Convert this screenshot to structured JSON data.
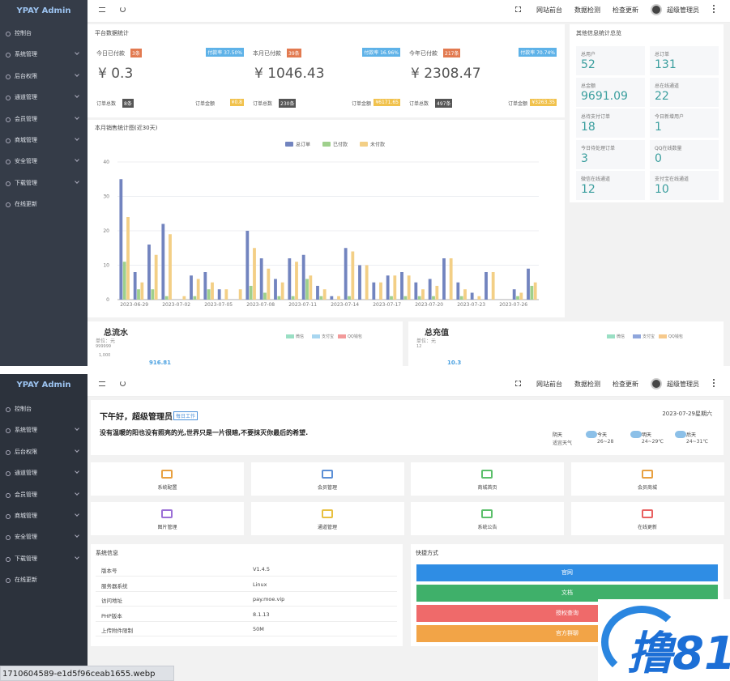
{
  "top": {
    "sidebar": {
      "brand": "YPAY Admin",
      "menu": [
        "控制台",
        "系统管理",
        "后台权限",
        "通道管理",
        "会员管理",
        "商城管理",
        "安全管理",
        "下载管理",
        "在线更新"
      ]
    },
    "topbar": {
      "links": [
        "网站前台",
        "数据检测",
        "检查更新"
      ],
      "user": "超级管理员"
    },
    "stats": {
      "title": "平台数据统计",
      "cards": [
        {
          "label": "今日已付款",
          "count": "3条",
          "rate": "付款率 37.50%",
          "amount": "¥ 0.3",
          "orders_label": "订单总数",
          "orders": "8条",
          "money_label": "订单金额",
          "money": "¥0.8"
        },
        {
          "label": "本月已付款",
          "count": "39条",
          "rate": "付款率 16.96%",
          "amount": "¥ 1046.43",
          "orders_label": "订单总数",
          "orders": "230条",
          "money_label": "订单金额",
          "money": "¥6171.65"
        },
        {
          "label": "今年已付款",
          "count": "217条",
          "rate": "付款率 70.74%",
          "amount": "¥ 2308.47",
          "orders_label": "订单总数",
          "orders": "497条",
          "money_label": "订单金额",
          "money": "¥3263.35"
        }
      ]
    },
    "overview": {
      "title": "其他信息统计总览",
      "items": [
        {
          "label": "总用户",
          "value": 52
        },
        {
          "label": "总订单",
          "value": 131
        },
        {
          "label": "总金额",
          "value": 9691.09
        },
        {
          "label": "总在线通道",
          "value": 22
        },
        {
          "label": "总待支付订单",
          "value": 18
        },
        {
          "label": "今日新增用户",
          "value": 1
        },
        {
          "label": "今日待处理订单",
          "value": 3
        },
        {
          "label": "QQ在线数量",
          "value": 0
        },
        {
          "label": "微信在线通道",
          "value": 12
        },
        {
          "label": "支付宝在线通道",
          "value": 10
        }
      ]
    },
    "panels": [
      {
        "title": "总流水",
        "unit": "单位：元",
        "legend": [
          "微信",
          "支付宝",
          "QQ钱包"
        ],
        "axis": [
          "999999",
          "1,000"
        ],
        "value": "916.81"
      },
      {
        "title": "总充值",
        "unit": "单位：元",
        "legend": [
          "微信",
          "支付宝",
          "QQ钱包"
        ],
        "axis": [
          "12"
        ],
        "value": "10.3"
      }
    ]
  },
  "chart_data": {
    "type": "bar",
    "title": "本月销售统计图(近30天)",
    "categories": [
      "2023-06-29",
      null,
      null,
      "2023-07-02",
      null,
      null,
      "2023-07-05",
      null,
      null,
      "2023-07-08",
      null,
      null,
      "2023-07-11",
      null,
      null,
      "2023-07-14",
      null,
      null,
      "2023-07-17",
      null,
      null,
      "2023-07-20",
      null,
      null,
      "2023-07-23",
      null,
      null,
      "2023-07-26",
      null,
      null
    ],
    "series": [
      {
        "name": "总订单",
        "color": "#7284bf",
        "values": [
          35,
          8,
          16,
          22,
          0,
          7,
          8,
          3,
          0,
          20,
          12,
          6,
          12,
          13,
          4,
          1,
          15,
          10,
          5,
          7,
          8,
          5,
          6,
          12,
          5,
          2,
          8,
          0,
          3,
          9
        ]
      },
      {
        "name": "已付款",
        "color": "#9fd08c",
        "values": [
          11,
          3,
          3,
          1,
          0,
          1,
          3,
          0,
          0,
          4,
          2,
          1,
          1,
          6,
          1,
          0,
          1,
          0,
          0,
          1,
          1,
          1,
          1,
          0,
          1,
          0,
          0,
          0,
          1,
          4
        ]
      },
      {
        "name": "未付款",
        "color": "#f3cf86",
        "values": [
          24,
          5,
          13,
          19,
          1,
          6,
          5,
          3,
          3,
          15,
          9,
          5,
          11,
          7,
          3,
          1,
          14,
          10,
          5,
          7,
          7,
          3,
          4,
          12,
          3,
          1,
          8,
          0,
          2,
          5
        ]
      }
    ],
    "ylim": [
      0,
      40
    ],
    "yticks": [
      0,
      10,
      20,
      30,
      40
    ],
    "grid": true
  },
  "bottom": {
    "greeting": "下午好，超级管理员",
    "badge": "每日工作",
    "quote": "没有温暖的阳也没有照亮的光,世界只是一片很暗,不要抹灭你最后的希望.",
    "date": "2023-07-29星期六",
    "weather": [
      {
        "day": "阴天",
        "temp": "适宜天气"
      },
      {
        "day": "今天",
        "temp": "26~28"
      },
      {
        "day": "明天",
        "temp": "24~29℃"
      },
      {
        "day": "后天",
        "temp": "24~31℃"
      }
    ],
    "tiles": [
      "系统配置",
      "会员管理",
      "商城首页",
      "会员商城",
      "图片管理",
      "通道管理",
      "系统公告",
      "在线更新"
    ],
    "info": {
      "title": "系统信息",
      "rows": [
        [
          "版本号",
          "V1.4.5"
        ],
        [
          "服务器系统",
          "Linux"
        ],
        [
          "访问地址",
          "pay.moe.vip"
        ],
        [
          "PHP版本",
          "8.1.13"
        ],
        [
          "上传附件限制",
          "50M"
        ]
      ]
    },
    "shortcuts": {
      "title": "快捷方式",
      "buttons": [
        "官网",
        "文档",
        "授权查询",
        "官方群聊"
      ]
    }
  },
  "logo": "撸81",
  "file": "1710604589-e1d5f96ceab1655.webp"
}
